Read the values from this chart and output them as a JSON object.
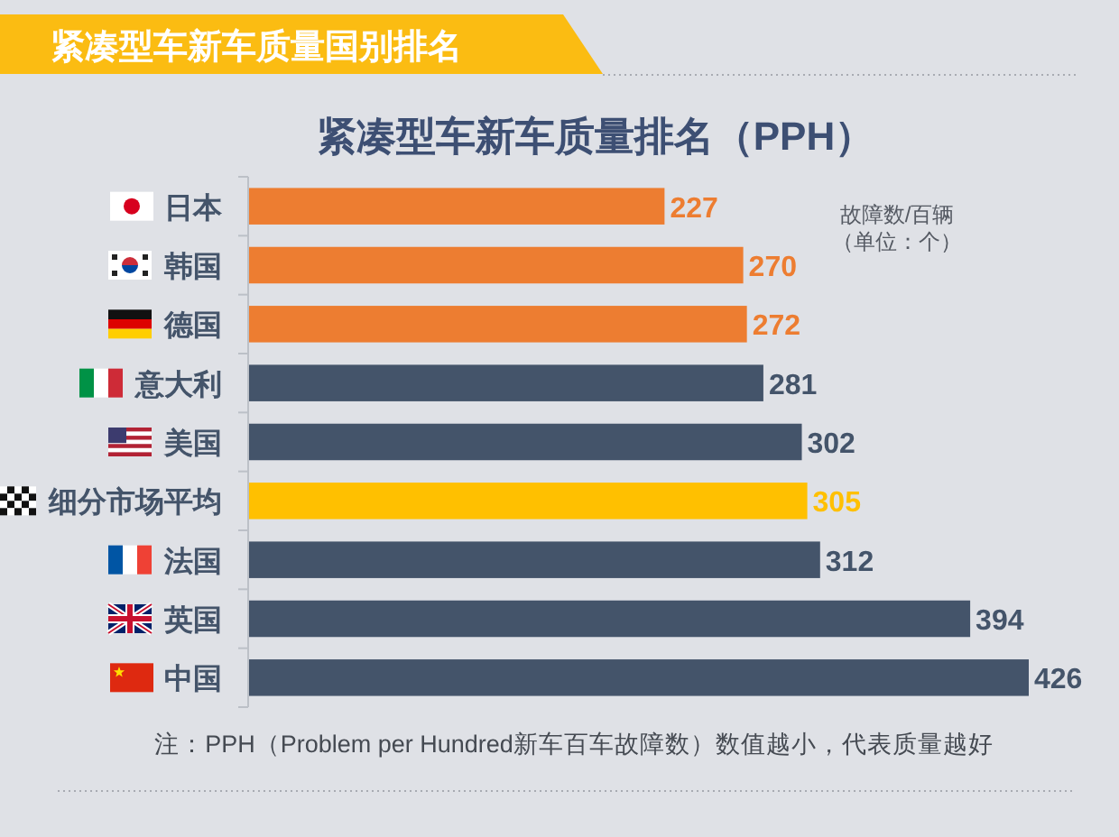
{
  "chart_data": {
    "type": "bar",
    "orientation": "horizontal",
    "title": "紧凑型车新车质量国别排名",
    "subtitle": "紧凑型车新车质量排名（PPH）",
    "categories": [
      "日本",
      "韩国",
      "德国",
      "意大利",
      "美国",
      "细分市场平均",
      "法国",
      "英国",
      "中国"
    ],
    "values": [
      227,
      270,
      272,
      281,
      302,
      305,
      312,
      394,
      426
    ],
    "colors": [
      "#ed7d31",
      "#ed7d31",
      "#ed7d31",
      "#44546a",
      "#44546a",
      "#ffc000",
      "#44546a",
      "#44546a",
      "#44546a"
    ],
    "data_labels": true,
    "annotations": [
      "故障数/百辆",
      "（单位：个）",
      "注：PPH（Problem per Hundred新车百车故障数）数值越小，代表质量越好"
    ]
  }
}
